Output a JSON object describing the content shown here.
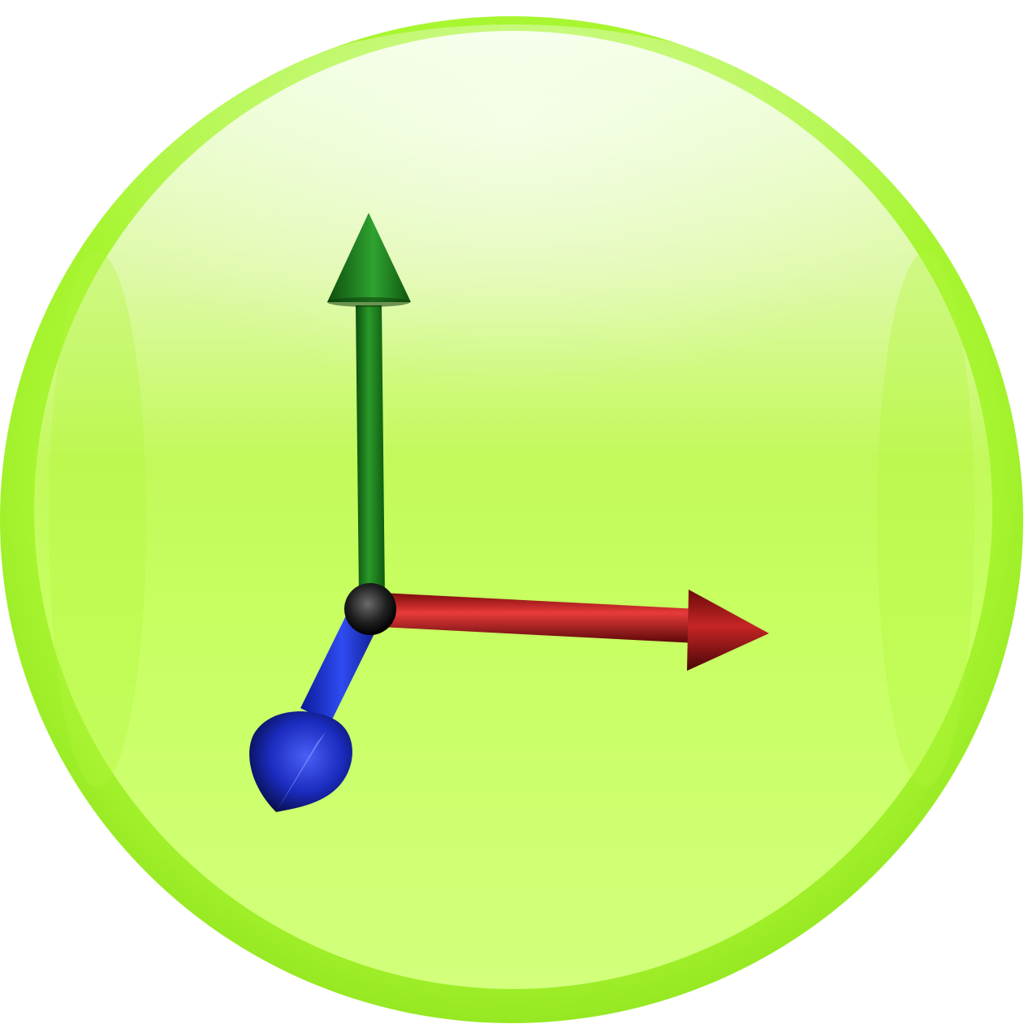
{
  "app": {
    "icon_name": "coordinate-axes-icon",
    "description_shown_text": ""
  },
  "colors": {
    "rim": "#a6f52f",
    "face_top": "#eaffcf",
    "face_mid": "#c9ff5c",
    "face_bottom": "#d2ff7a",
    "y_axis": "#1e8a1e",
    "x_axis": "#c11f1f",
    "z_axis": "#1b2fd0",
    "origin": "#1a1a1a"
  },
  "icons": {
    "y_axis_arrow": "arrow-up-icon",
    "x_axis_arrow": "arrow-right-icon",
    "z_axis_arrow": "arrow-down-left-icon"
  }
}
